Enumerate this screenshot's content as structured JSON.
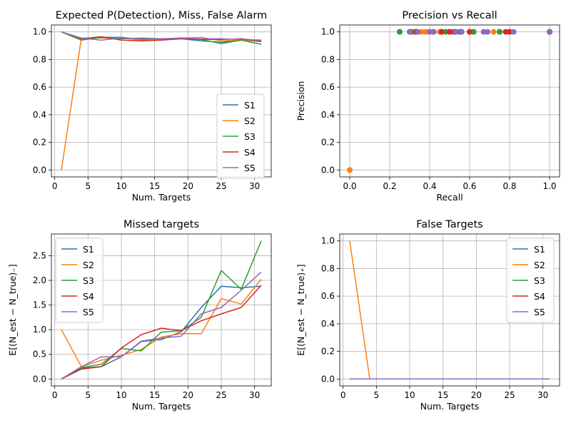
{
  "colors": [
    "#1f77b4",
    "#ff7f0e",
    "#2ca02c",
    "#d62728",
    "#9467bd"
  ],
  "chart_data": [
    {
      "type": "line",
      "title": "Expected P(Detection), Miss, False Alarm",
      "xlabel": "Num. Targets",
      "ylabel": "",
      "xlim": [
        -0.5,
        32.5
      ],
      "ylim": [
        -0.05,
        1.05
      ],
      "xticks": [
        0,
        5,
        10,
        15,
        20,
        25,
        30
      ],
      "yticks": [
        0.0,
        0.2,
        0.4,
        0.6,
        0.8,
        1.0
      ],
      "ytick_labels": [
        "0.0",
        "0.2",
        "0.4",
        "0.6",
        "0.8",
        "1.0"
      ],
      "grid": true,
      "legend": "center-right",
      "x": [
        1,
        4,
        7,
        10,
        13,
        16,
        19,
        22,
        25,
        28,
        31
      ],
      "series": [
        {
          "name": "S1",
          "values": [
            1.0,
            0.95,
            0.96,
            0.96,
            0.945,
            0.95,
            0.95,
            0.935,
            0.925,
            0.94,
            0.93
          ]
        },
        {
          "name": "S2",
          "values": [
            0.0,
            0.955,
            0.955,
            0.955,
            0.94,
            0.945,
            0.955,
            0.96,
            0.935,
            0.94,
            0.935
          ]
        },
        {
          "name": "S3",
          "values": [
            1.0,
            0.94,
            0.96,
            0.95,
            0.955,
            0.95,
            0.955,
            0.945,
            0.915,
            0.94,
            0.91
          ]
        },
        {
          "name": "S4",
          "values": [
            1.0,
            0.95,
            0.965,
            0.94,
            0.935,
            0.94,
            0.95,
            0.945,
            0.945,
            0.95,
            0.935
          ]
        },
        {
          "name": "S5",
          "values": [
            1.0,
            0.955,
            0.94,
            0.955,
            0.95,
            0.95,
            0.955,
            0.95,
            0.95,
            0.945,
            0.94
          ]
        }
      ]
    },
    {
      "type": "scatter",
      "title": "Precision vs Recall",
      "xlabel": "Recall",
      "ylabel": "Precision",
      "xlim": [
        -0.05,
        1.05
      ],
      "ylim": [
        -0.05,
        1.05
      ],
      "xticks": [
        0.0,
        0.2,
        0.4,
        0.6,
        0.8,
        1.0
      ],
      "xtick_labels": [
        "0.0",
        "0.2",
        "0.4",
        "0.6",
        "0.8",
        "1.0"
      ],
      "yticks": [
        0.0,
        0.2,
        0.4,
        0.6,
        0.8,
        1.0
      ],
      "ytick_labels": [
        "0.0",
        "0.2",
        "0.4",
        "0.6",
        "0.8",
        "1.0"
      ],
      "grid": true,
      "series": [
        {
          "points": [
            [
              0.25,
              1.0
            ],
            [
              0.3,
              1.0
            ],
            [
              0.33,
              1.0
            ],
            [
              0.46,
              1.0
            ],
            [
              0.5,
              1.0
            ],
            [
              0.55,
              1.0
            ],
            [
              0.62,
              1.0
            ],
            [
              0.75,
              1.0
            ],
            [
              1.0,
              1.0
            ]
          ]
        },
        {
          "points": [
            [
              0.0,
              0.0
            ],
            [
              0.33,
              1.0
            ],
            [
              0.36,
              1.0
            ],
            [
              0.38,
              1.0
            ],
            [
              0.45,
              1.0
            ],
            [
              0.5,
              1.0
            ],
            [
              0.6,
              1.0
            ],
            [
              0.72,
              1.0
            ],
            [
              0.8,
              1.0
            ],
            [
              1.0,
              1.0
            ]
          ]
        },
        {
          "points": [
            [
              0.25,
              1.0
            ],
            [
              0.31,
              1.0
            ],
            [
              0.4,
              1.0
            ],
            [
              0.48,
              1.0
            ],
            [
              0.53,
              1.0
            ],
            [
              0.62,
              1.0
            ],
            [
              0.75,
              1.0
            ],
            [
              1.0,
              1.0
            ]
          ]
        },
        {
          "points": [
            [
              0.33,
              1.0
            ],
            [
              0.42,
              1.0
            ],
            [
              0.46,
              1.0
            ],
            [
              0.5,
              1.0
            ],
            [
              0.52,
              1.0
            ],
            [
              0.6,
              1.0
            ],
            [
              0.78,
              1.0
            ],
            [
              0.8,
              1.0
            ],
            [
              1.0,
              1.0
            ]
          ]
        },
        {
          "points": [
            [
              0.3,
              1.0
            ],
            [
              0.34,
              1.0
            ],
            [
              0.4,
              1.0
            ],
            [
              0.42,
              1.0
            ],
            [
              0.53,
              1.0
            ],
            [
              0.56,
              1.0
            ],
            [
              0.67,
              1.0
            ],
            [
              0.69,
              1.0
            ],
            [
              0.82,
              1.0
            ],
            [
              1.0,
              1.0
            ]
          ]
        }
      ]
    },
    {
      "type": "line",
      "title": "Missed targets",
      "xlabel": "Num. Targets",
      "ylabel": "E[(N_est − N_true)₋]",
      "xlim": [
        -0.5,
        32.5
      ],
      "ylim": [
        -0.14,
        2.94
      ],
      "xticks": [
        0,
        5,
        10,
        15,
        20,
        25,
        30
      ],
      "yticks": [
        0.0,
        0.5,
        1.0,
        1.5,
        2.0,
        2.5
      ],
      "ytick_labels": [
        "0.0",
        "0.5",
        "1.0",
        "1.5",
        "2.0",
        "2.5"
      ],
      "grid": true,
      "legend": "top-left",
      "x": [
        1,
        4,
        7,
        10,
        13,
        16,
        19,
        22,
        25,
        28,
        31
      ],
      "series": [
        {
          "name": "S1",
          "values": [
            0.0,
            0.22,
            0.25,
            0.45,
            0.76,
            0.8,
            0.96,
            1.45,
            1.88,
            1.85,
            1.88
          ]
        },
        {
          "name": "S2",
          "values": [
            1.0,
            0.25,
            0.38,
            0.48,
            0.6,
            0.85,
            0.92,
            0.92,
            1.63,
            1.52,
            2.02
          ]
        },
        {
          "name": "S3",
          "values": [
            0.0,
            0.23,
            0.3,
            0.62,
            0.57,
            0.95,
            0.98,
            1.25,
            2.2,
            1.82,
            2.8
          ]
        },
        {
          "name": "S4",
          "values": [
            0.0,
            0.2,
            0.25,
            0.63,
            0.9,
            1.03,
            0.98,
            1.18,
            1.32,
            1.45,
            1.9
          ]
        },
        {
          "name": "S5",
          "values": [
            0.0,
            0.25,
            0.45,
            0.45,
            0.77,
            0.83,
            0.87,
            1.32,
            1.45,
            1.8,
            2.17
          ]
        }
      ]
    },
    {
      "type": "line",
      "title": "False Targets",
      "xlabel": "Num. Targets",
      "ylabel": "E[(N_est − N_true)₊]",
      "xlim": [
        -0.5,
        32.5
      ],
      "ylim": [
        -0.05,
        1.05
      ],
      "xticks": [
        0,
        5,
        10,
        15,
        20,
        25,
        30
      ],
      "yticks": [
        0.0,
        0.2,
        0.4,
        0.6,
        0.8,
        1.0
      ],
      "ytick_labels": [
        "0.0",
        "0.2",
        "0.4",
        "0.6",
        "0.8",
        "1.0"
      ],
      "grid": true,
      "legend": "top-right",
      "x": [
        1,
        4,
        7,
        10,
        13,
        16,
        19,
        22,
        25,
        28,
        31
      ],
      "series": [
        {
          "name": "S1",
          "values": [
            0,
            0,
            0,
            0,
            0,
            0,
            0,
            0,
            0,
            0,
            0
          ]
        },
        {
          "name": "S2",
          "values": [
            1.0,
            0,
            0,
            0,
            0,
            0,
            0,
            0,
            0,
            0,
            0
          ]
        },
        {
          "name": "S3",
          "values": [
            0,
            0,
            0,
            0,
            0,
            0,
            0,
            0,
            0,
            0,
            0
          ]
        },
        {
          "name": "S4",
          "values": [
            0,
            0,
            0,
            0,
            0,
            0,
            0,
            0,
            0,
            0,
            0
          ]
        },
        {
          "name": "S5",
          "values": [
            0,
            0,
            0,
            0,
            0,
            0,
            0,
            0,
            0,
            0,
            0
          ]
        }
      ]
    }
  ]
}
